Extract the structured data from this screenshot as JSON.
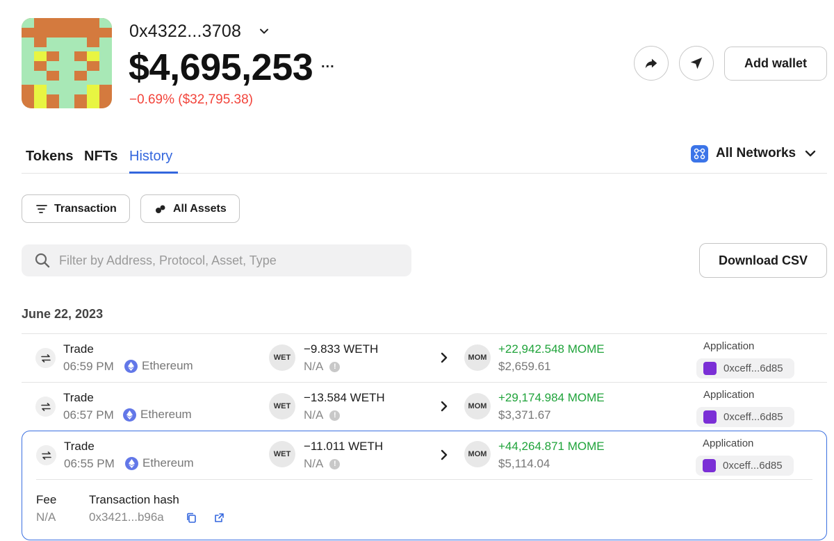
{
  "wallet": {
    "address": "0x4322...3708",
    "balance": "$4,695,253",
    "more": "...",
    "change": "−0.69% ($32,795.38)",
    "add_wallet_label": "Add wallet"
  },
  "tabs": [
    {
      "label": "Tokens",
      "active": false
    },
    {
      "label": "NFTs",
      "active": false
    },
    {
      "label": "History",
      "active": true
    }
  ],
  "network_selector": {
    "label": "All Networks"
  },
  "filters": {
    "transaction_label": "Transaction",
    "assets_label": "All Assets"
  },
  "search": {
    "placeholder": "Filter by Address, Protocol, Asset, Type"
  },
  "download_csv_label": "Download CSV",
  "date_header": "June 22, 2023",
  "transactions": [
    {
      "type": "Trade",
      "time": "06:59 PM",
      "chain": "Ethereum",
      "sent_token": "WET",
      "sent_amount": "−9.833 WETH",
      "sent_value": "N/A",
      "recv_token": "MOM",
      "recv_amount": "+22,942.548 MOME",
      "recv_value": "$2,659.61",
      "app_label": "Application",
      "app_address": "0xceff...6d85"
    },
    {
      "type": "Trade",
      "time": "06:57 PM",
      "chain": "Ethereum",
      "sent_token": "WET",
      "sent_amount": "−13.584 WETH",
      "sent_value": "N/A",
      "recv_token": "MOM",
      "recv_amount": "+29,174.984 MOME",
      "recv_value": "$3,371.67",
      "app_label": "Application",
      "app_address": "0xceff...6d85"
    },
    {
      "type": "Trade",
      "time": "06:55 PM",
      "chain": "Ethereum",
      "sent_token": "WET",
      "sent_amount": "−11.011 WETH",
      "sent_value": "N/A",
      "recv_token": "MOM",
      "recv_amount": "+44,264.871 MOME",
      "recv_value": "$5,114.04",
      "app_label": "Application",
      "app_address": "0xceff...6d85",
      "details": {
        "fee_label": "Fee",
        "fee_value": "N/A",
        "hash_label": "Transaction hash",
        "hash_value": "0x3421...b96a"
      }
    }
  ],
  "colors": {
    "accent": "#3366dd",
    "negative": "#f2443b",
    "positive": "#1fa33a"
  }
}
